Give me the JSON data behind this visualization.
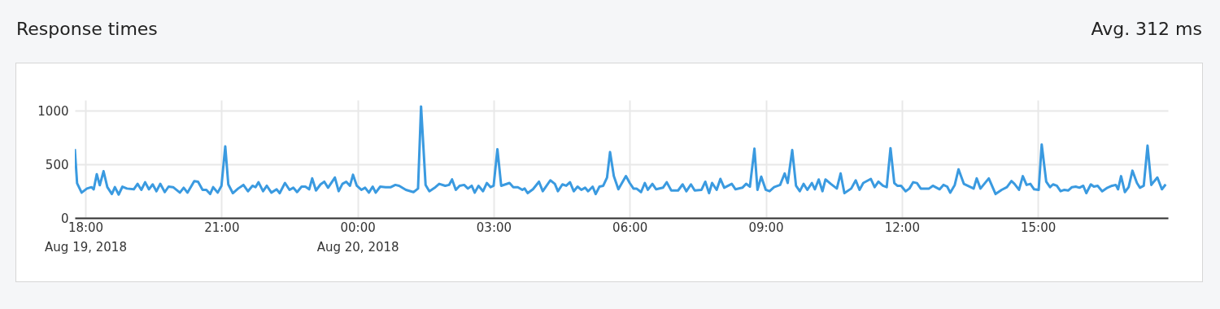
{
  "chart_data": {
    "type": "line",
    "title": "Response times",
    "annotations": [
      "Avg. 312 ms"
    ],
    "x": [
      "2018-08-19T17:46",
      "2018-08-19T17:49",
      "2018-08-19T17:55",
      "2018-08-19T18:02",
      "2018-08-19T18:08",
      "2018-08-19T18:11",
      "2018-08-19T18:15",
      "2018-08-19T18:19",
      "2018-08-19T18:24",
      "2018-08-19T18:29",
      "2018-08-19T18:35",
      "2018-08-19T18:39",
      "2018-08-19T18:44",
      "2018-08-19T18:49",
      "2018-08-19T18:55",
      "2018-08-19T19:04",
      "2018-08-19T19:09",
      "2018-08-19T19:14",
      "2018-08-19T19:19",
      "2018-08-19T19:24",
      "2018-08-19T19:29",
      "2018-08-19T19:34",
      "2018-08-19T19:39",
      "2018-08-19T19:45",
      "2018-08-19T19:50",
      "2018-08-19T19:56",
      "2018-08-19T20:05",
      "2018-08-19T20:10",
      "2018-08-19T20:15",
      "2018-08-19T20:24",
      "2018-08-19T20:29",
      "2018-08-19T20:35",
      "2018-08-19T20:40",
      "2018-08-19T20:45",
      "2018-08-19T20:49",
      "2018-08-19T20:55",
      "2018-08-19T21:00",
      "2018-08-19T21:05",
      "2018-08-19T21:09",
      "2018-08-19T21:15",
      "2018-08-19T21:22",
      "2018-08-19T21:29",
      "2018-08-19T21:35",
      "2018-08-19T21:41",
      "2018-08-19T21:45",
      "2018-08-19T21:49",
      "2018-08-19T21:55",
      "2018-08-19T22:00",
      "2018-08-19T22:06",
      "2018-08-19T22:13",
      "2018-08-19T22:17",
      "2018-08-19T22:24",
      "2018-08-19T22:30",
      "2018-08-19T22:35",
      "2018-08-19T22:40",
      "2018-08-19T22:46",
      "2018-08-19T22:51",
      "2018-08-19T22:56",
      "2018-08-19T23:00",
      "2018-08-19T23:05",
      "2018-08-19T23:11",
      "2018-08-19T23:16",
      "2018-08-19T23:21",
      "2018-08-19T23:30",
      "2018-08-19T23:35",
      "2018-08-19T23:40",
      "2018-08-19T23:45",
      "2018-08-19T23:50",
      "2018-08-19T23:54",
      "2018-08-19T23:59",
      "2018-08-20T00:05",
      "2018-08-20T00:10",
      "2018-08-20T00:15",
      "2018-08-20T00:20",
      "2018-08-20T00:24",
      "2018-08-20T00:30",
      "2018-08-20T00:37",
      "2018-08-20T00:44",
      "2018-08-20T00:50",
      "2018-08-20T00:55",
      "2018-08-20T01:04",
      "2018-08-20T01:14",
      "2018-08-20T01:20",
      "2018-08-20T01:24",
      "2018-08-20T01:30",
      "2018-08-20T01:35",
      "2018-08-20T01:43",
      "2018-08-20T01:48",
      "2018-08-20T01:56",
      "2018-08-20T02:01",
      "2018-08-20T02:05",
      "2018-08-20T02:10",
      "2018-08-20T02:15",
      "2018-08-20T02:21",
      "2018-08-20T02:26",
      "2018-08-20T02:31",
      "2018-08-20T02:35",
      "2018-08-20T02:40",
      "2018-08-20T02:46",
      "2018-08-20T02:51",
      "2018-08-20T02:56",
      "2018-08-20T03:00",
      "2018-08-20T03:05",
      "2018-08-20T03:10",
      "2018-08-20T03:21",
      "2018-08-20T03:26",
      "2018-08-20T03:32",
      "2018-08-20T03:38",
      "2018-08-20T03:41",
      "2018-08-20T03:45",
      "2018-08-20T03:52",
      "2018-08-20T04:00",
      "2018-08-20T04:05",
      "2018-08-20T04:15",
      "2018-08-20T04:21",
      "2018-08-20T04:25",
      "2018-08-20T04:31",
      "2018-08-20T04:36",
      "2018-08-20T04:41",
      "2018-08-20T04:46",
      "2018-08-20T04:51",
      "2018-08-20T04:56",
      "2018-08-20T05:01",
      "2018-08-20T05:05",
      "2018-08-20T05:11",
      "2018-08-20T05:15",
      "2018-08-20T05:20",
      "2018-08-20T05:25",
      "2018-08-20T05:30",
      "2018-08-20T05:34",
      "2018-08-20T05:39",
      "2018-08-20T05:45",
      "2018-08-20T05:55",
      "2018-08-20T06:00",
      "2018-08-20T06:05",
      "2018-08-20T06:09",
      "2018-08-20T06:15",
      "2018-08-20T06:20",
      "2018-08-20T06:24",
      "2018-08-20T06:30",
      "2018-08-20T06:35",
      "2018-08-20T06:44",
      "2018-08-20T06:49",
      "2018-08-20T06:55",
      "2018-08-20T07:04",
      "2018-08-20T07:10",
      "2018-08-20T07:15",
      "2018-08-20T07:21",
      "2018-08-20T07:26",
      "2018-08-20T07:35",
      "2018-08-20T07:40",
      "2018-08-20T07:45",
      "2018-08-20T07:49",
      "2018-08-20T07:55",
      "2018-08-20T08:00",
      "2018-08-20T08:05",
      "2018-08-20T08:15",
      "2018-08-20T08:20",
      "2018-08-20T08:29",
      "2018-08-20T08:34",
      "2018-08-20T08:39",
      "2018-08-20T08:45",
      "2018-08-20T08:49",
      "2018-08-20T08:54",
      "2018-08-20T09:00",
      "2018-08-20T09:05",
      "2018-08-20T09:11",
      "2018-08-20T09:19",
      "2018-08-20T09:25",
      "2018-08-20T09:29",
      "2018-08-20T09:35",
      "2018-08-20T09:40",
      "2018-08-20T09:45",
      "2018-08-20T09:50",
      "2018-08-20T09:55",
      "2018-08-20T10:01",
      "2018-08-20T10:05",
      "2018-08-20T10:10",
      "2018-08-20T10:15",
      "2018-08-20T10:19",
      "2018-08-20T10:26",
      "2018-08-20T10:34",
      "2018-08-20T10:39",
      "2018-08-20T10:44",
      "2018-08-20T10:53",
      "2018-08-20T10:59",
      "2018-08-20T11:04",
      "2018-08-20T11:09",
      "2018-08-20T11:19",
      "2018-08-20T11:24",
      "2018-08-20T11:29",
      "2018-08-20T11:35",
      "2018-08-20T11:40",
      "2018-08-20T11:45",
      "2018-08-20T11:50",
      "2018-08-20T11:54",
      "2018-08-20T11:59",
      "2018-08-20T12:05",
      "2018-08-20T12:10",
      "2018-08-20T12:15",
      "2018-08-20T12:20",
      "2018-08-20T12:25",
      "2018-08-20T12:36",
      "2018-08-20T12:41",
      "2018-08-20T12:50",
      "2018-08-20T12:55",
      "2018-08-20T13:00",
      "2018-08-20T13:04",
      "2018-08-20T13:10",
      "2018-08-20T13:15",
      "2018-08-20T13:22",
      "2018-08-20T13:35",
      "2018-08-20T13:39",
      "2018-08-20T13:44",
      "2018-08-20T13:55",
      "2018-08-20T14:04",
      "2018-08-20T14:12",
      "2018-08-20T14:19",
      "2018-08-20T14:25",
      "2018-08-20T14:29",
      "2018-08-20T14:35",
      "2018-08-20T14:40",
      "2018-08-20T14:45",
      "2018-08-20T14:50",
      "2018-08-20T14:55",
      "2018-08-20T15:01",
      "2018-08-20T15:05",
      "2018-08-20T15:11",
      "2018-08-20T15:16",
      "2018-08-20T15:20",
      "2018-08-20T15:25",
      "2018-08-20T15:30",
      "2018-08-20T15:35",
      "2018-08-20T15:40",
      "2018-08-20T15:45",
      "2018-08-20T15:50",
      "2018-08-20T15:55",
      "2018-08-20T16:00",
      "2018-08-20T16:04",
      "2018-08-20T16:10",
      "2018-08-20T16:14",
      "2018-08-20T16:19",
      "2018-08-20T16:25",
      "2018-08-20T16:32",
      "2018-08-20T16:38",
      "2018-08-20T16:43",
      "2018-08-20T16:46",
      "2018-08-20T16:50",
      "2018-08-20T16:55",
      "2018-08-20T17:00",
      "2018-08-20T17:05",
      "2018-08-20T17:11",
      "2018-08-20T17:15",
      "2018-08-20T17:20",
      "2018-08-20T17:25",
      "2018-08-20T17:30",
      "2018-08-20T17:34",
      "2018-08-20T17:38",
      "2018-08-20T17:44",
      "2018-08-20T17:49"
    ],
    "series": [
      {
        "color": "#3a9ae0",
        "values": [
          643,
          324,
          236,
          274,
          287,
          267,
          408,
          305,
          436,
          287,
          223,
          287,
          218,
          292,
          274,
          267,
          318,
          262,
          333,
          267,
          313,
          249,
          318,
          241,
          292,
          287,
          236,
          282,
          236,
          344,
          338,
          262,
          262,
          223,
          287,
          236,
          300,
          667,
          313,
          231,
          274,
          308,
          249,
          300,
          287,
          333,
          249,
          300,
          236,
          267,
          231,
          326,
          262,
          282,
          241,
          292,
          292,
          267,
          369,
          256,
          313,
          338,
          282,
          377,
          249,
          318,
          338,
          300,
          403,
          300,
          262,
          282,
          236,
          292,
          236,
          292,
          287,
          287,
          308,
          300,
          262,
          241,
          274,
          1040,
          308,
          249,
          287,
          318,
          300,
          308,
          359,
          262,
          300,
          308,
          274,
          300,
          236,
          300,
          249,
          326,
          287,
          300,
          641,
          300,
          326,
          287,
          287,
          262,
          274,
          231,
          267,
          338,
          249,
          351,
          318,
          249,
          313,
          300,
          333,
          249,
          292,
          262,
          282,
          249,
          292,
          223,
          292,
          300,
          377,
          615,
          390,
          267,
          390,
          326,
          274,
          274,
          241,
          326,
          262,
          318,
          267,
          282,
          333,
          256,
          256,
          313,
          249,
          313,
          256,
          262,
          338,
          231,
          326,
          262,
          364,
          282,
          318,
          267,
          282,
          318,
          292,
          646,
          262,
          385,
          262,
          249,
          287,
          308,
          415,
          326,
          633,
          300,
          249,
          318,
          262,
          326,
          267,
          359,
          249,
          359,
          318,
          274,
          415,
          231,
          274,
          351,
          262,
          326,
          364,
          287,
          338,
          300,
          287,
          651,
          326,
          300,
          300,
          249,
          274,
          333,
          325,
          274,
          274,
          300,
          267,
          308,
          292,
          236,
          308,
          454,
          318,
          274,
          369,
          274,
          369,
          223,
          262,
          287,
          344,
          318,
          262,
          390,
          308,
          318,
          267,
          262,
          685,
          338,
          287,
          313,
          300,
          249,
          262,
          256,
          287,
          292,
          282,
          300,
          231,
          313,
          292,
          300,
          249,
          282,
          300,
          308,
          267,
          390,
          241,
          287,
          441,
          326,
          282,
          300,
          675,
          308,
          344,
          377,
          267,
          313
        ]
      }
    ],
    "xlim": [
      "2018-08-19T17:46",
      "2018-08-20T17:52"
    ],
    "xticks": [
      {
        "value": "2018-08-19T18:00",
        "label": "18:00\nAug 19, 2018"
      },
      {
        "value": "2018-08-19T21:00",
        "label": "21:00"
      },
      {
        "value": "2018-08-20T00:00",
        "label": "00:00\nAug 20, 2018"
      },
      {
        "value": "2018-08-20T03:00",
        "label": "03:00"
      },
      {
        "value": "2018-08-20T06:00",
        "label": "06:00"
      },
      {
        "value": "2018-08-20T09:00",
        "label": "09:00"
      },
      {
        "value": "2018-08-20T12:00",
        "label": "12:00"
      },
      {
        "value": "2018-08-20T15:00",
        "label": "15:00"
      }
    ],
    "ylim": [
      0,
      1100
    ],
    "yticks": [
      0,
      500,
      1000
    ],
    "grid": true
  }
}
